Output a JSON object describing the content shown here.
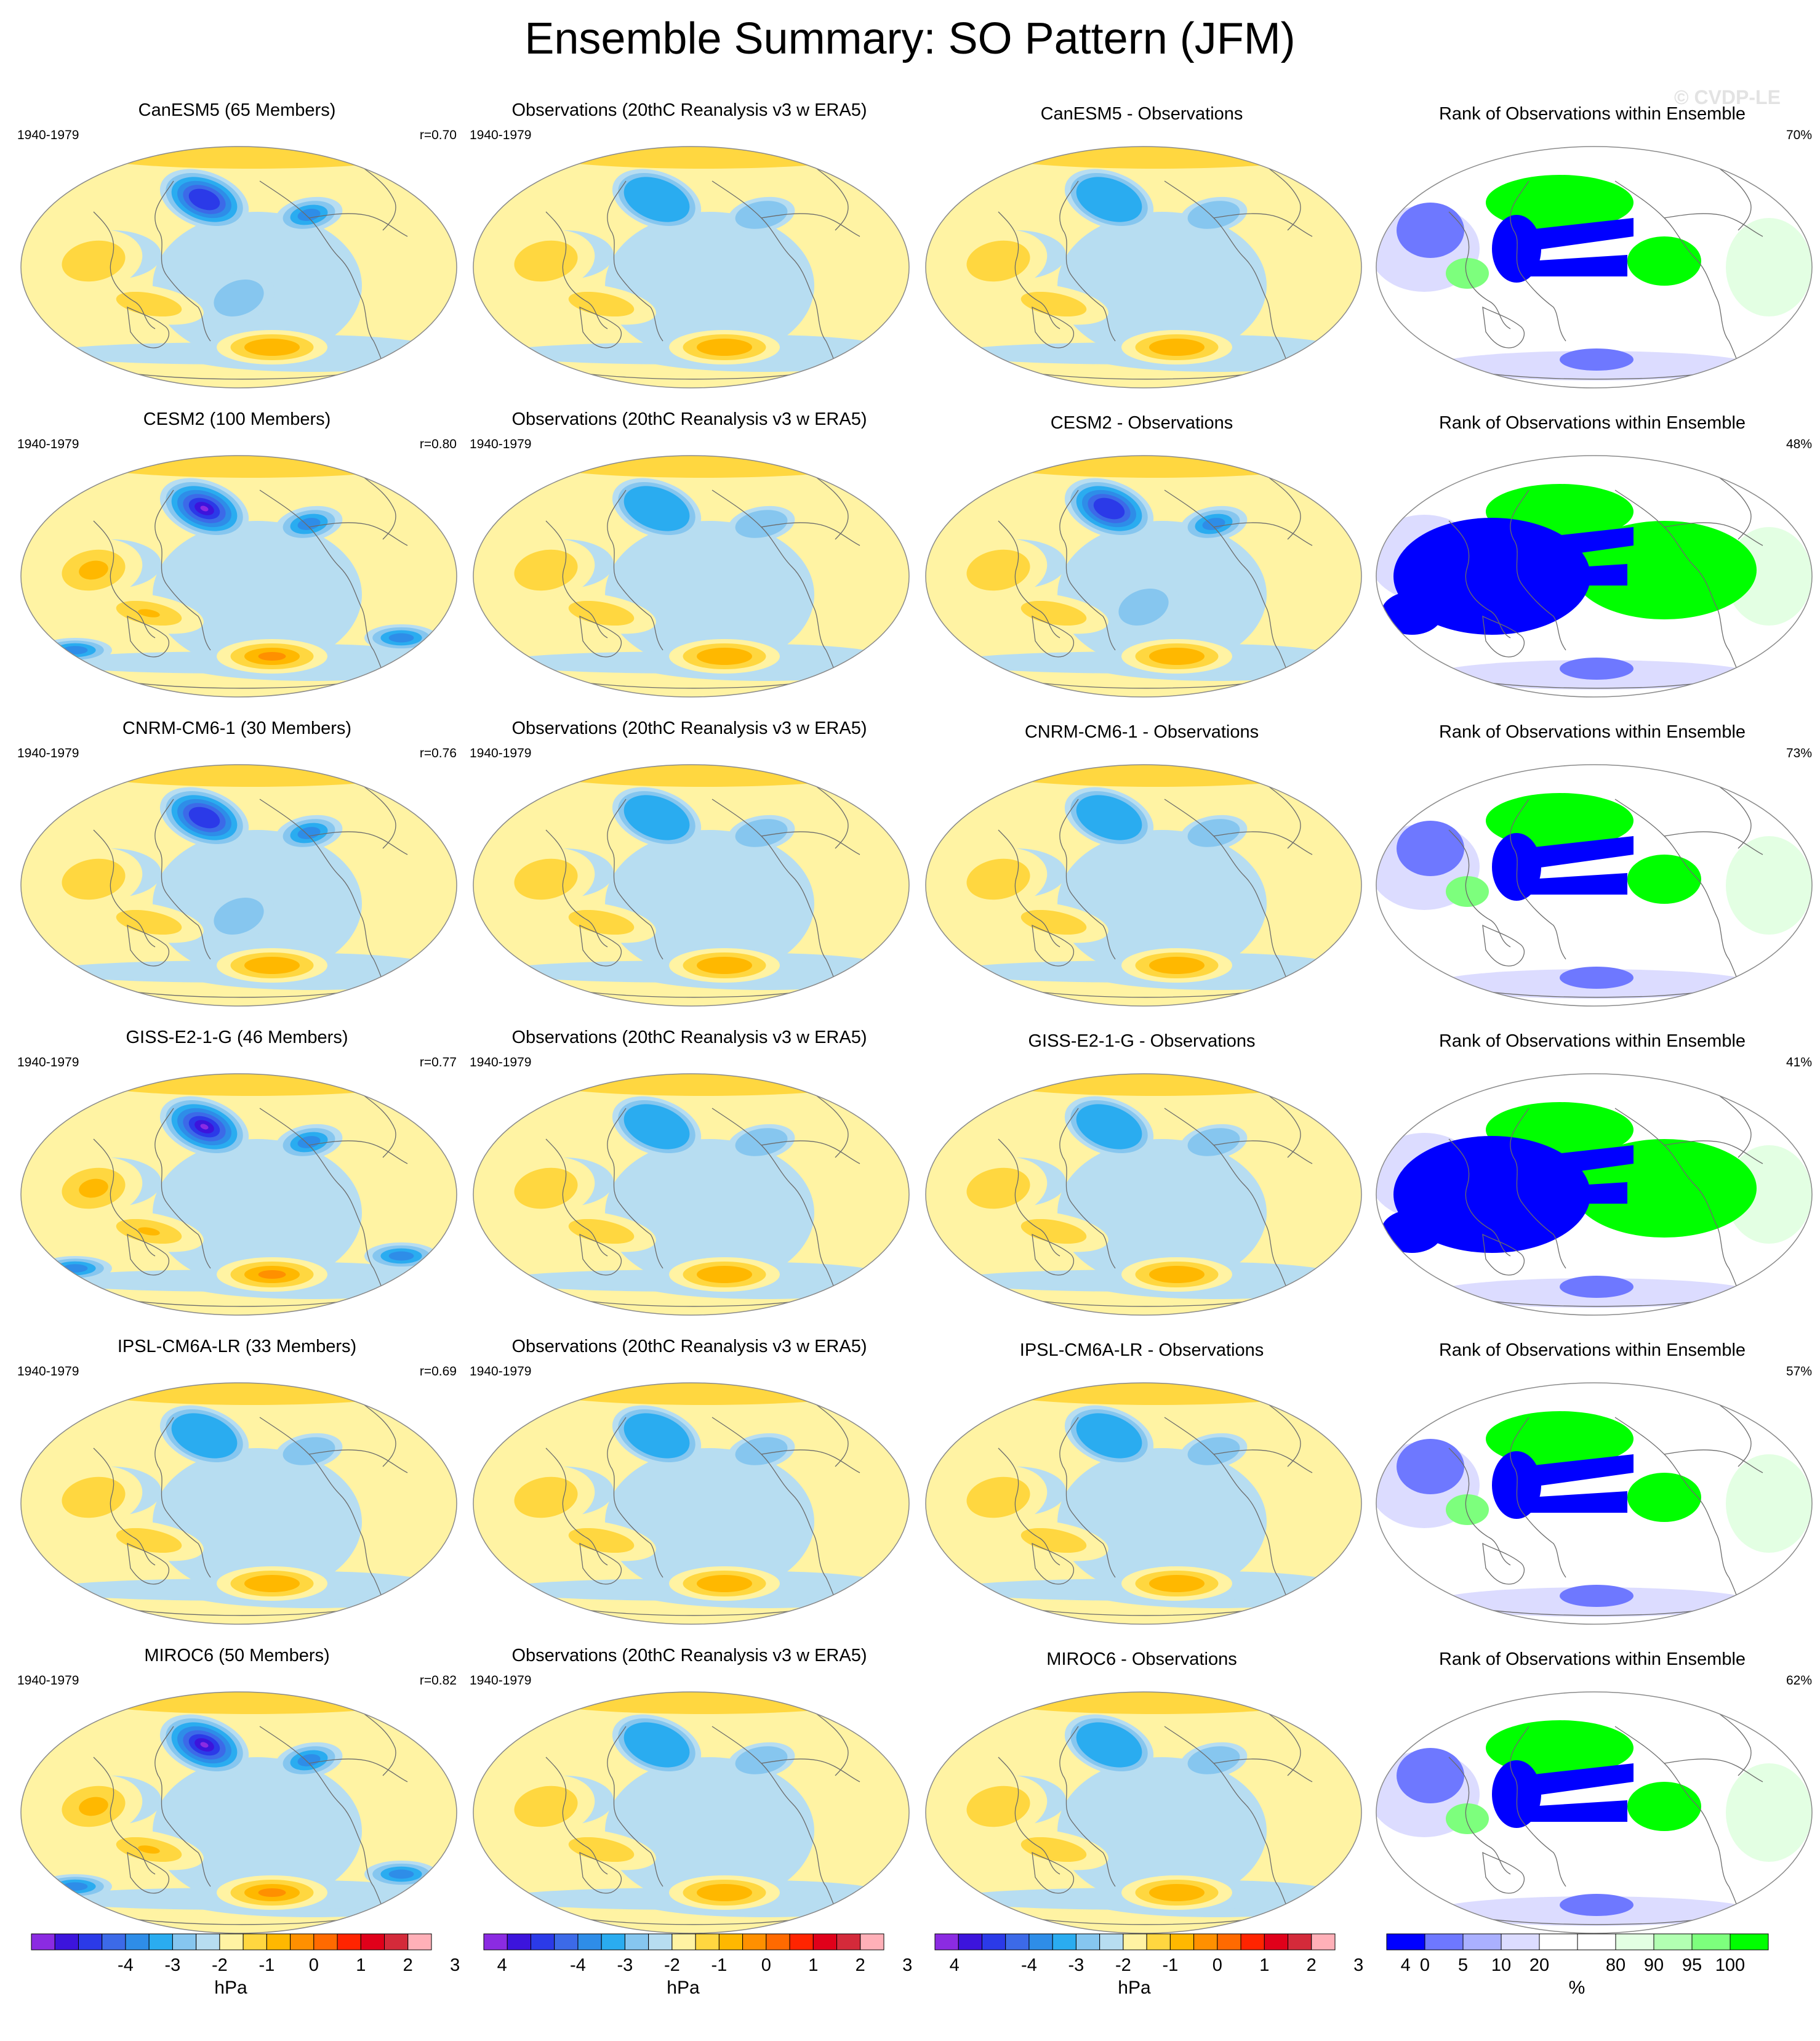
{
  "title": "Ensemble Summary: SO Pattern (JFM)",
  "watermark": "© CVDP-LE",
  "period": "1940-1979",
  "rank_title": "Rank of Observations within Ensemble",
  "obs_title": "Observations (20thC Reanalysis v3 w ERA5)",
  "rows": [
    {
      "model_title": "CanESM5 (65 Members)",
      "r": "r=0.70",
      "diff_title": "CanESM5 - Observations",
      "rank_pct": "70%"
    },
    {
      "model_title": "CESM2 (100 Members)",
      "r": "r=0.80",
      "diff_title": "CESM2 - Observations",
      "rank_pct": "48%"
    },
    {
      "model_title": "CNRM-CM6-1 (30 Members)",
      "r": "r=0.76",
      "diff_title": "CNRM-CM6-1 - Observations",
      "rank_pct": "73%"
    },
    {
      "model_title": "GISS-E2-1-G (46 Members)",
      "r": "r=0.77",
      "diff_title": "GISS-E2-1-G - Observations",
      "rank_pct": "41%"
    },
    {
      "model_title": "IPSL-CM6A-LR (33 Members)",
      "r": "r=0.69",
      "diff_title": "IPSL-CM6A-LR - Observations",
      "rank_pct": "57%"
    },
    {
      "model_title": "MIROC6 (50 Members)",
      "r": "r=0.82",
      "diff_title": "MIROC6 - Observations",
      "rank_pct": "62%"
    }
  ],
  "colorbar_hpa": {
    "colors": [
      "#8b2be2",
      "#3c14dc",
      "#2b3ae8",
      "#3c6ae8",
      "#2e8de8",
      "#2aacf0",
      "#86c6ef",
      "#b7ddf1",
      "#fff3a3",
      "#ffd740",
      "#ffb800",
      "#ff9000",
      "#ff6a00",
      "#ff2400",
      "#e0001a",
      "#d42a3a",
      "#ffb0b8"
    ],
    "ticks": [
      "-4",
      "-3",
      "-2",
      "-1",
      "0",
      "1",
      "2",
      "3",
      "4"
    ],
    "units": "hPa"
  },
  "colorbar_pct": {
    "colors": [
      "#0000ff",
      "#6e78ff",
      "#aab0ff",
      "#dcdcff",
      "#ffffff",
      "#ffffff",
      "#e3ffe3",
      "#b2ffb2",
      "#7dff7d",
      "#00ff00"
    ],
    "ticks": [
      "0",
      "5",
      "10",
      "20",
      "80",
      "90",
      "95",
      "100"
    ],
    "units": "%"
  }
}
